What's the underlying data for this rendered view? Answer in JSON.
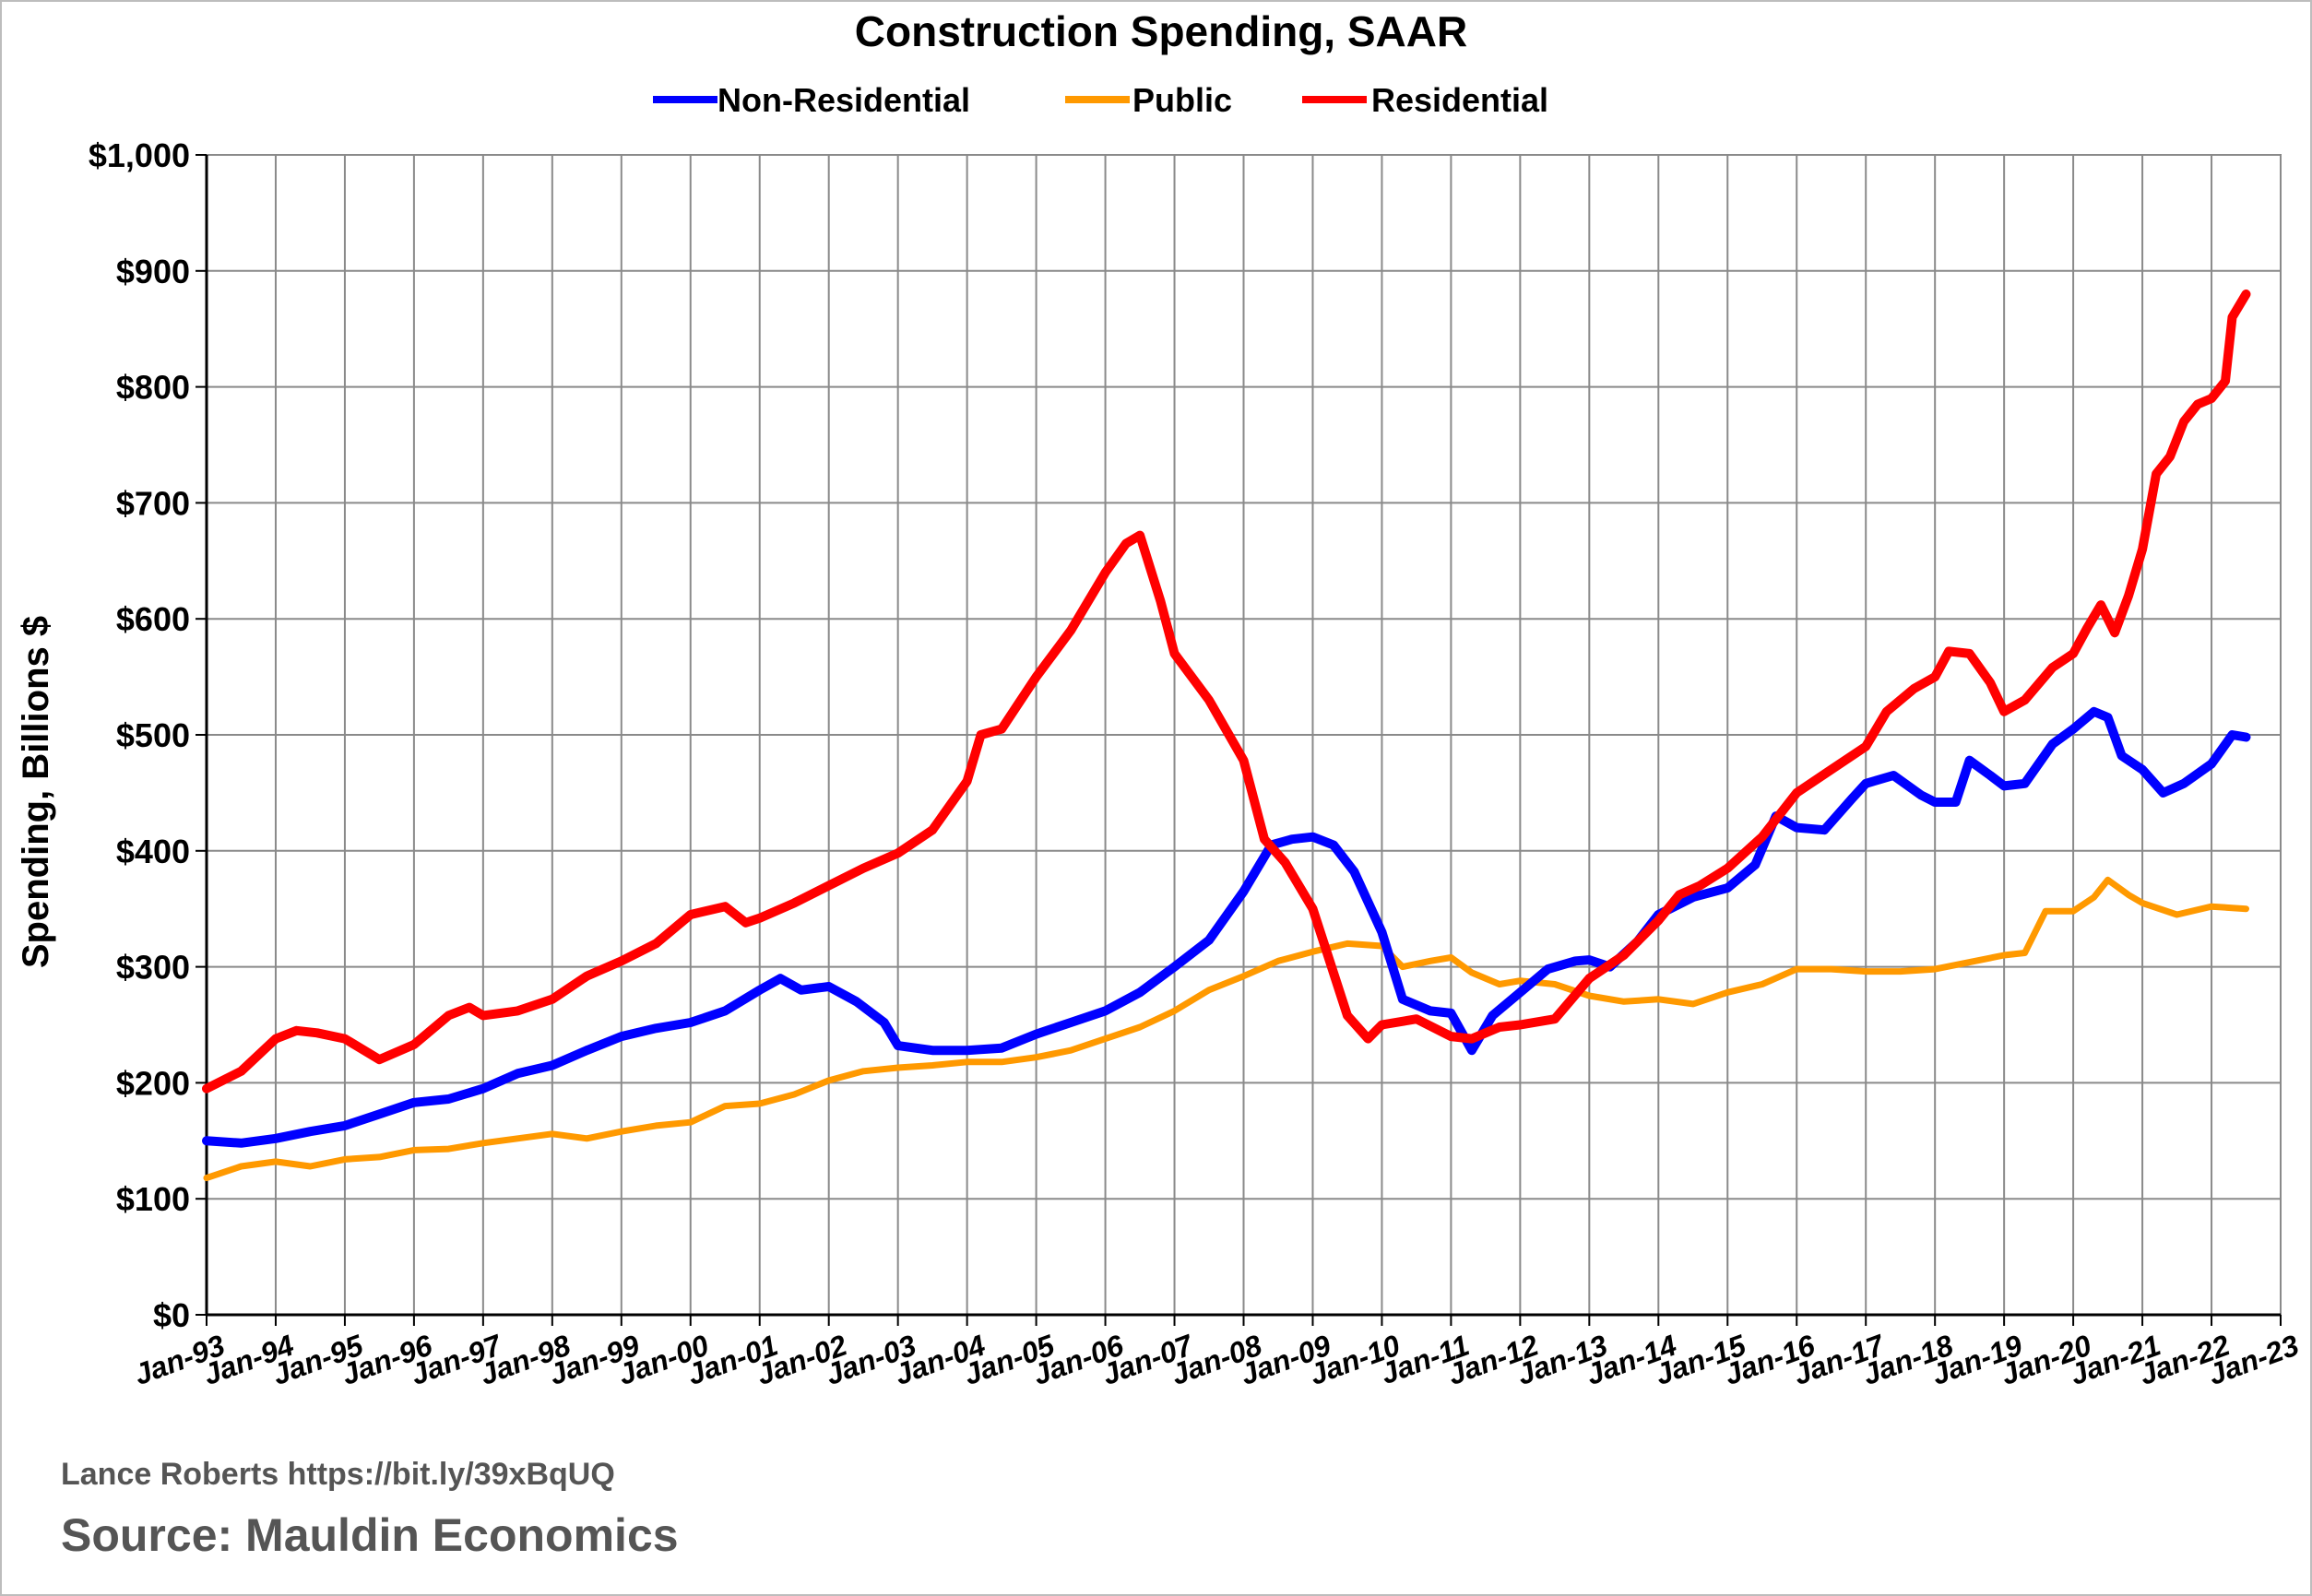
{
  "credit": "Lance Roberts https://bit.ly/39xBqUQ",
  "source": "Source: Mauldin Economics",
  "chart_data": {
    "type": "line",
    "title": "Construction Spending, SAAR",
    "ylabel": "Spending, Billions $",
    "xlabel": "",
    "ylim": [
      0,
      1000
    ],
    "yticks": [
      "$0",
      "$100",
      "$200",
      "$300",
      "$400",
      "$500",
      "$600",
      "$700",
      "$800",
      "$900",
      "$1,000"
    ],
    "xlim": [
      1993,
      2023
    ],
    "xticks": [
      "Jan-93",
      "Jan-94",
      "Jan-95",
      "Jan-96",
      "Jan-97",
      "Jan-98",
      "Jan-99",
      "Jan-00",
      "Jan-01",
      "Jan-02",
      "Jan-03",
      "Jan-04",
      "Jan-05",
      "Jan-06",
      "Jan-07",
      "Jan-08",
      "Jan-09",
      "Jan-10",
      "Jan-11",
      "Jan-12",
      "Jan-13",
      "Jan-14",
      "Jan-15",
      "Jan-16",
      "Jan-17",
      "Jan-18",
      "Jan-19",
      "Jan-20",
      "Jan-21",
      "Jan-22",
      "Jan-23"
    ],
    "grid": true,
    "legend_position": "top",
    "series": [
      {
        "name": "Non-Residential",
        "color": "#0000ff",
        "points": [
          [
            1993.0,
            150
          ],
          [
            1993.5,
            148
          ],
          [
            1994.0,
            152
          ],
          [
            1994.5,
            158
          ],
          [
            1995.0,
            163
          ],
          [
            1995.5,
            173
          ],
          [
            1996.0,
            183
          ],
          [
            1996.5,
            186
          ],
          [
            1997.0,
            195
          ],
          [
            1997.5,
            208
          ],
          [
            1998.0,
            215
          ],
          [
            1998.5,
            228
          ],
          [
            1999.0,
            240
          ],
          [
            1999.5,
            247
          ],
          [
            2000.0,
            252
          ],
          [
            2000.5,
            262
          ],
          [
            2001.0,
            280
          ],
          [
            2001.3,
            290
          ],
          [
            2001.6,
            280
          ],
          [
            2002.0,
            283
          ],
          [
            2002.4,
            270
          ],
          [
            2002.8,
            252
          ],
          [
            2003.0,
            232
          ],
          [
            2003.5,
            228
          ],
          [
            2004.0,
            228
          ],
          [
            2004.5,
            230
          ],
          [
            2005.0,
            242
          ],
          [
            2005.5,
            252
          ],
          [
            2006.0,
            262
          ],
          [
            2006.5,
            278
          ],
          [
            2007.0,
            300
          ],
          [
            2007.5,
            323
          ],
          [
            2008.0,
            365
          ],
          [
            2008.4,
            405
          ],
          [
            2008.7,
            410
          ],
          [
            2009.0,
            412
          ],
          [
            2009.3,
            405
          ],
          [
            2009.6,
            382
          ],
          [
            2010.0,
            330
          ],
          [
            2010.3,
            272
          ],
          [
            2010.7,
            262
          ],
          [
            2011.0,
            260
          ],
          [
            2011.3,
            228
          ],
          [
            2011.6,
            258
          ],
          [
            2012.0,
            278
          ],
          [
            2012.4,
            298
          ],
          [
            2012.8,
            305
          ],
          [
            2013.0,
            306
          ],
          [
            2013.3,
            300
          ],
          [
            2013.7,
            322
          ],
          [
            2014.0,
            345
          ],
          [
            2014.5,
            360
          ],
          [
            2015.0,
            368
          ],
          [
            2015.4,
            388
          ],
          [
            2015.7,
            430
          ],
          [
            2016.0,
            420
          ],
          [
            2016.4,
            418
          ],
          [
            2016.8,
            445
          ],
          [
            2017.0,
            458
          ],
          [
            2017.4,
            465
          ],
          [
            2017.8,
            448
          ],
          [
            2018.0,
            442
          ],
          [
            2018.3,
            442
          ],
          [
            2018.5,
            478
          ],
          [
            2018.8,
            465
          ],
          [
            2019.0,
            456
          ],
          [
            2019.3,
            458
          ],
          [
            2019.7,
            492
          ],
          [
            2020.0,
            505
          ],
          [
            2020.3,
            520
          ],
          [
            2020.5,
            515
          ],
          [
            2020.7,
            482
          ],
          [
            2021.0,
            470
          ],
          [
            2021.3,
            450
          ],
          [
            2021.6,
            458
          ],
          [
            2022.0,
            475
          ],
          [
            2022.3,
            500
          ],
          [
            2022.5,
            498
          ]
        ]
      },
      {
        "name": "Public",
        "color": "#ff9900",
        "points": [
          [
            1993.0,
            118
          ],
          [
            1993.5,
            128
          ],
          [
            1994.0,
            132
          ],
          [
            1994.5,
            128
          ],
          [
            1995.0,
            134
          ],
          [
            1995.5,
            136
          ],
          [
            1996.0,
            142
          ],
          [
            1996.5,
            143
          ],
          [
            1997.0,
            148
          ],
          [
            1997.5,
            152
          ],
          [
            1998.0,
            156
          ],
          [
            1998.5,
            152
          ],
          [
            1999.0,
            158
          ],
          [
            1999.5,
            163
          ],
          [
            2000.0,
            166
          ],
          [
            2000.5,
            180
          ],
          [
            2001.0,
            182
          ],
          [
            2001.5,
            190
          ],
          [
            2002.0,
            202
          ],
          [
            2002.5,
            210
          ],
          [
            2003.0,
            213
          ],
          [
            2003.5,
            215
          ],
          [
            2004.0,
            218
          ],
          [
            2004.5,
            218
          ],
          [
            2005.0,
            222
          ],
          [
            2005.5,
            228
          ],
          [
            2006.0,
            238
          ],
          [
            2006.5,
            248
          ],
          [
            2007.0,
            262
          ],
          [
            2007.5,
            280
          ],
          [
            2008.0,
            292
          ],
          [
            2008.5,
            305
          ],
          [
            2009.0,
            313
          ],
          [
            2009.5,
            320
          ],
          [
            2010.0,
            318
          ],
          [
            2010.3,
            300
          ],
          [
            2010.7,
            305
          ],
          [
            2011.0,
            308
          ],
          [
            2011.3,
            295
          ],
          [
            2011.7,
            285
          ],
          [
            2012.0,
            288
          ],
          [
            2012.5,
            285
          ],
          [
            2013.0,
            275
          ],
          [
            2013.5,
            270
          ],
          [
            2014.0,
            272
          ],
          [
            2014.5,
            268
          ],
          [
            2015.0,
            278
          ],
          [
            2015.5,
            285
          ],
          [
            2016.0,
            298
          ],
          [
            2016.5,
            298
          ],
          [
            2017.0,
            296
          ],
          [
            2017.5,
            296
          ],
          [
            2018.0,
            298
          ],
          [
            2018.5,
            304
          ],
          [
            2019.0,
            310
          ],
          [
            2019.3,
            312
          ],
          [
            2019.6,
            348
          ],
          [
            2020.0,
            348
          ],
          [
            2020.3,
            360
          ],
          [
            2020.5,
            375
          ],
          [
            2020.8,
            362
          ],
          [
            2021.0,
            355
          ],
          [
            2021.5,
            345
          ],
          [
            2022.0,
            352
          ],
          [
            2022.5,
            350
          ]
        ]
      },
      {
        "name": "Residential",
        "color": "#ff0000",
        "points": [
          [
            1993.0,
            195
          ],
          [
            1993.5,
            210
          ],
          [
            1994.0,
            238
          ],
          [
            1994.3,
            245
          ],
          [
            1994.6,
            243
          ],
          [
            1995.0,
            238
          ],
          [
            1995.5,
            220
          ],
          [
            1996.0,
            233
          ],
          [
            1996.5,
            258
          ],
          [
            1996.8,
            265
          ],
          [
            1997.0,
            258
          ],
          [
            1997.5,
            262
          ],
          [
            1998.0,
            272
          ],
          [
            1998.5,
            292
          ],
          [
            1999.0,
            305
          ],
          [
            1999.5,
            320
          ],
          [
            2000.0,
            345
          ],
          [
            2000.5,
            352
          ],
          [
            2000.8,
            338
          ],
          [
            2001.0,
            342
          ],
          [
            2001.5,
            355
          ],
          [
            2002.0,
            370
          ],
          [
            2002.5,
            385
          ],
          [
            2003.0,
            398
          ],
          [
            2003.5,
            418
          ],
          [
            2004.0,
            460
          ],
          [
            2004.2,
            500
          ],
          [
            2004.5,
            505
          ],
          [
            2005.0,
            550
          ],
          [
            2005.5,
            590
          ],
          [
            2006.0,
            640
          ],
          [
            2006.3,
            665
          ],
          [
            2006.5,
            672
          ],
          [
            2006.8,
            615
          ],
          [
            2007.0,
            570
          ],
          [
            2007.5,
            530
          ],
          [
            2008.0,
            478
          ],
          [
            2008.3,
            410
          ],
          [
            2008.6,
            390
          ],
          [
            2009.0,
            350
          ],
          [
            2009.5,
            258
          ],
          [
            2009.8,
            238
          ],
          [
            2010.0,
            250
          ],
          [
            2010.5,
            255
          ],
          [
            2011.0,
            240
          ],
          [
            2011.3,
            238
          ],
          [
            2011.7,
            248
          ],
          [
            2012.0,
            250
          ],
          [
            2012.5,
            255
          ],
          [
            2013.0,
            290
          ],
          [
            2013.5,
            310
          ],
          [
            2014.0,
            340
          ],
          [
            2014.3,
            362
          ],
          [
            2014.6,
            370
          ],
          [
            2015.0,
            385
          ],
          [
            2015.5,
            412
          ],
          [
            2016.0,
            450
          ],
          [
            2016.5,
            470
          ],
          [
            2017.0,
            490
          ],
          [
            2017.3,
            520
          ],
          [
            2017.7,
            540
          ],
          [
            2018.0,
            550
          ],
          [
            2018.2,
            572
          ],
          [
            2018.5,
            570
          ],
          [
            2018.8,
            545
          ],
          [
            2019.0,
            520
          ],
          [
            2019.3,
            530
          ],
          [
            2019.7,
            558
          ],
          [
            2020.0,
            570
          ],
          [
            2020.2,
            592
          ],
          [
            2020.4,
            612
          ],
          [
            2020.6,
            588
          ],
          [
            2020.8,
            620
          ],
          [
            2021.0,
            660
          ],
          [
            2021.2,
            725
          ],
          [
            2021.4,
            740
          ],
          [
            2021.6,
            770
          ],
          [
            2021.8,
            785
          ],
          [
            2022.0,
            790
          ],
          [
            2022.2,
            805
          ],
          [
            2022.3,
            860
          ],
          [
            2022.5,
            880
          ]
        ]
      }
    ]
  }
}
